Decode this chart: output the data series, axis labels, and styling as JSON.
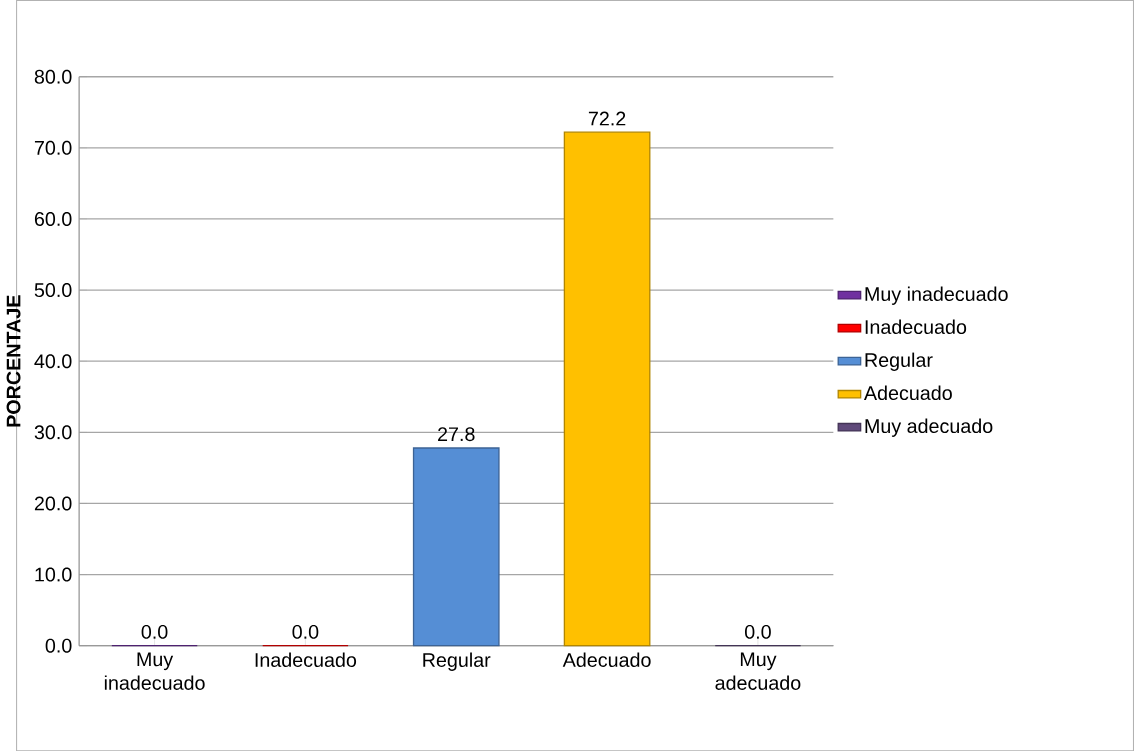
{
  "chart_data": {
    "type": "bar",
    "ylabel": "PORCENTAJE",
    "categories": [
      "Muy inadecuado",
      "Inadecuado",
      "Regular",
      "Adecuado",
      "Muy adecuado"
    ],
    "series": [
      {
        "name": "Muy inadecuado",
        "color": "#7030a0",
        "values": [
          0.0,
          null,
          null,
          null,
          null
        ],
        "value_labels": [
          "0.0",
          null,
          null,
          null,
          null
        ]
      },
      {
        "name": "Inadecuado",
        "color": "#ff0000",
        "values": [
          null,
          0.0,
          null,
          null,
          null
        ],
        "value_labels": [
          null,
          "0.0",
          null,
          null,
          null
        ]
      },
      {
        "name": "Regular",
        "color": "#558ed5",
        "values": [
          null,
          null,
          27.8,
          null,
          null
        ],
        "value_labels": [
          null,
          null,
          "27.8",
          null,
          null
        ]
      },
      {
        "name": "Adecuado",
        "color": "#ffc000",
        "values": [
          null,
          null,
          null,
          72.2,
          null
        ],
        "value_labels": [
          null,
          null,
          null,
          "72.2",
          null
        ]
      },
      {
        "name": "Muy adecuado",
        "color": "#604a7b",
        "values": [
          null,
          null,
          null,
          null,
          0.0
        ],
        "value_labels": [
          null,
          null,
          null,
          null,
          "0.0"
        ]
      }
    ],
    "ylim": [
      0,
      80
    ],
    "yticks": [
      {
        "value": 0,
        "label": "0.0"
      },
      {
        "value": 10,
        "label": "10.0"
      },
      {
        "value": 20,
        "label": "20.0"
      },
      {
        "value": 30,
        "label": "30.0"
      },
      {
        "value": 40,
        "label": "40.0"
      },
      {
        "value": 50,
        "label": "50.0"
      },
      {
        "value": 60,
        "label": "60.0"
      },
      {
        "value": 70,
        "label": "70.0"
      },
      {
        "value": 80,
        "label": "80.0"
      }
    ],
    "grid": "y",
    "legend": "right"
  }
}
